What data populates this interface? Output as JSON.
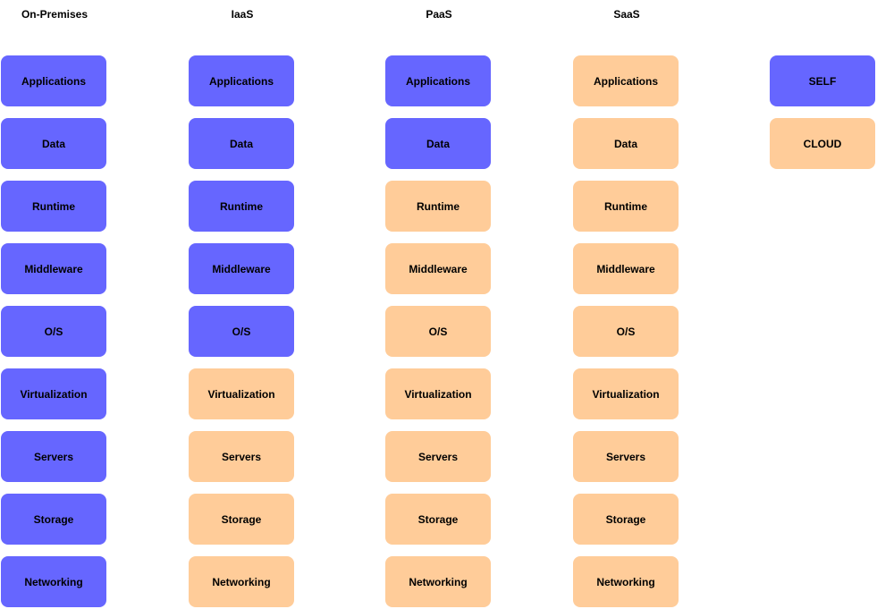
{
  "colors": {
    "self": "#6666ff",
    "cloud": "#ffcc99"
  },
  "columns": [
    {
      "title": "On-Premises",
      "layers": [
        {
          "label": "Applications",
          "owner": "self"
        },
        {
          "label": "Data",
          "owner": "self"
        },
        {
          "label": "Runtime",
          "owner": "self"
        },
        {
          "label": "Middleware",
          "owner": "self"
        },
        {
          "label": "O/S",
          "owner": "self"
        },
        {
          "label": "Virtualization",
          "owner": "self"
        },
        {
          "label": "Servers",
          "owner": "self"
        },
        {
          "label": "Storage",
          "owner": "self"
        },
        {
          "label": "Networking",
          "owner": "self"
        }
      ]
    },
    {
      "title": "IaaS",
      "layers": [
        {
          "label": "Applications",
          "owner": "self"
        },
        {
          "label": "Data",
          "owner": "self"
        },
        {
          "label": "Runtime",
          "owner": "self"
        },
        {
          "label": "Middleware",
          "owner": "self"
        },
        {
          "label": "O/S",
          "owner": "self"
        },
        {
          "label": "Virtualization",
          "owner": "cloud"
        },
        {
          "label": "Servers",
          "owner": "cloud"
        },
        {
          "label": "Storage",
          "owner": "cloud"
        },
        {
          "label": "Networking",
          "owner": "cloud"
        }
      ]
    },
    {
      "title": "PaaS",
      "layers": [
        {
          "label": "Applications",
          "owner": "self"
        },
        {
          "label": "Data",
          "owner": "self"
        },
        {
          "label": "Runtime",
          "owner": "cloud"
        },
        {
          "label": "Middleware",
          "owner": "cloud"
        },
        {
          "label": "O/S",
          "owner": "cloud"
        },
        {
          "label": "Virtualization",
          "owner": "cloud"
        },
        {
          "label": "Servers",
          "owner": "cloud"
        },
        {
          "label": "Storage",
          "owner": "cloud"
        },
        {
          "label": "Networking",
          "owner": "cloud"
        }
      ]
    },
    {
      "title": "SaaS",
      "layers": [
        {
          "label": "Applications",
          "owner": "cloud"
        },
        {
          "label": "Data",
          "owner": "cloud"
        },
        {
          "label": "Runtime",
          "owner": "cloud"
        },
        {
          "label": "Middleware",
          "owner": "cloud"
        },
        {
          "label": "O/S",
          "owner": "cloud"
        },
        {
          "label": "Virtualization",
          "owner": "cloud"
        },
        {
          "label": "Servers",
          "owner": "cloud"
        },
        {
          "label": "Storage",
          "owner": "cloud"
        },
        {
          "label": "Networking",
          "owner": "cloud"
        }
      ]
    }
  ],
  "legend": {
    "self_label": "SELF",
    "cloud_label": "CLOUD"
  }
}
